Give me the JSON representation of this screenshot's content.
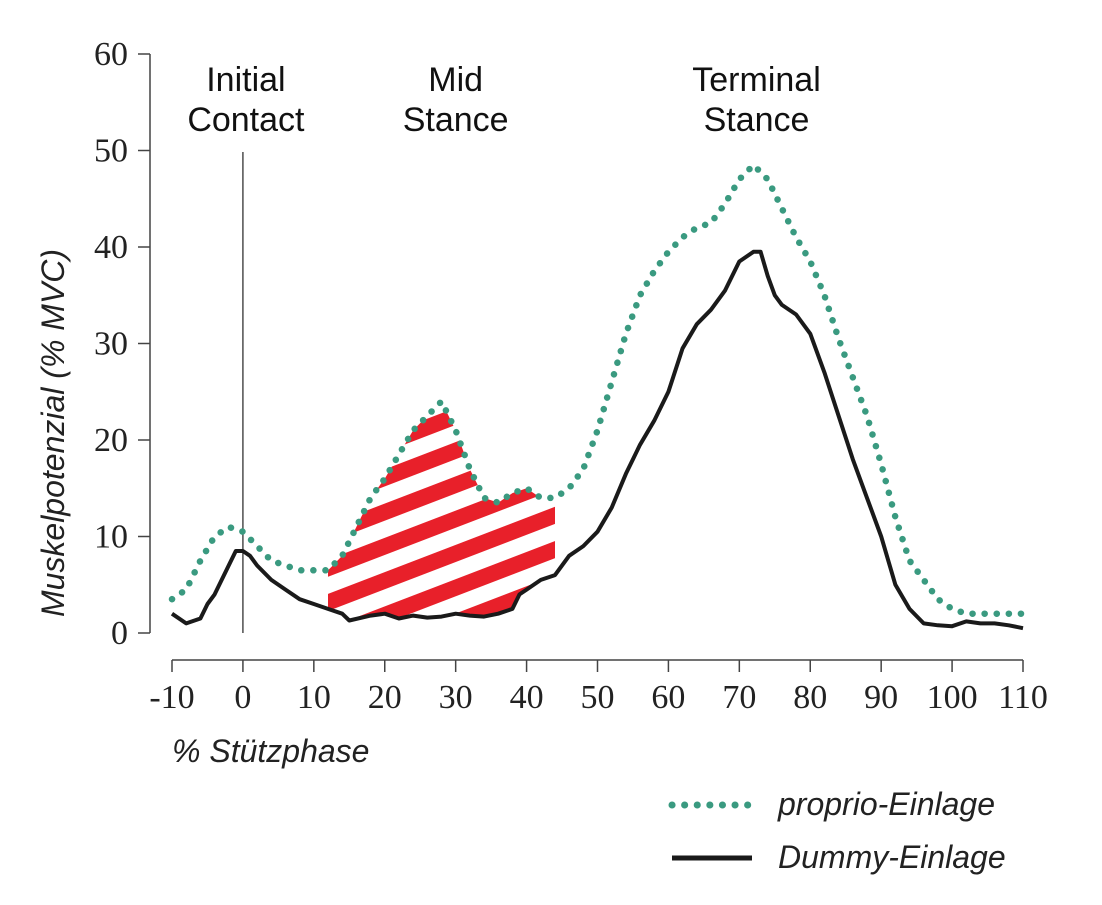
{
  "chart_data": {
    "type": "line",
    "xlabel": "% Stützphase",
    "ylabel": "Muskelpotenzial (% MVC)",
    "xlim": [
      -10,
      110
    ],
    "ylim": [
      0,
      60
    ],
    "xticks": [
      -10,
      0,
      10,
      20,
      30,
      40,
      50,
      60,
      70,
      80,
      90,
      100,
      110
    ],
    "yticks": [
      0,
      10,
      20,
      30,
      40,
      50,
      60
    ],
    "grid": false,
    "legend_position": "bottom-right",
    "phase_labels": [
      {
        "x": 0,
        "line1": "Initial",
        "line2": "Contact"
      },
      {
        "x": 30,
        "line1": "Mid",
        "line2": "Stance"
      },
      {
        "x": 72,
        "line1": "Terminal",
        "line2": "Stance"
      }
    ],
    "vertical_marker_x": 0,
    "highlight_region": {
      "x_start": 12,
      "x_end": 44,
      "color": "#e8202a",
      "pattern": "diagonal-stripes"
    },
    "series": [
      {
        "name": "proprio-Einlage",
        "color": "#3a9a80",
        "style": "dotted",
        "x": [
          -10,
          -8,
          -6,
          -4,
          -2,
          0,
          2,
          4,
          6,
          8,
          10,
          12,
          14,
          16,
          18,
          20,
          22,
          24,
          26,
          28,
          30,
          32,
          34,
          36,
          38,
          40,
          42,
          44,
          46,
          48,
          50,
          52,
          54,
          56,
          58,
          60,
          62,
          64,
          66,
          68,
          70,
          72,
          74,
          76,
          78,
          80,
          82,
          84,
          86,
          88,
          90,
          92,
          94,
          96,
          98,
          100,
          102,
          104,
          106,
          108,
          110
        ],
        "y": [
          3.5,
          4.5,
          7.5,
          10,
          11,
          10.5,
          9,
          7.5,
          7,
          6.5,
          6.5,
          6.5,
          8,
          11,
          14,
          16,
          18.5,
          21,
          22.5,
          24,
          21,
          17,
          14,
          13.5,
          14.5,
          15,
          14,
          14,
          15,
          17,
          21,
          26,
          31,
          35,
          37.5,
          39.5,
          41,
          42,
          42.5,
          44.5,
          47,
          48.5,
          47,
          44,
          41,
          38.5,
          35,
          30.5,
          26.5,
          22.5,
          17.5,
          12,
          7.5,
          5.5,
          3.5,
          2.5,
          2,
          2,
          2,
          2,
          2
        ]
      },
      {
        "name": "Dummy-Einlage",
        "color": "#1a1a1a",
        "style": "solid",
        "x": [
          -10,
          -8,
          -6,
          -5,
          -4,
          -2,
          -1,
          0,
          1,
          2,
          4,
          6,
          8,
          10,
          12,
          14,
          15,
          18,
          20,
          22,
          24,
          26,
          28,
          30,
          32,
          34,
          36,
          38,
          39,
          40,
          42,
          44,
          46,
          48,
          50,
          52,
          54,
          56,
          58,
          60,
          62,
          64,
          66,
          68,
          70,
          72,
          73,
          74,
          75,
          76,
          78,
          80,
          82,
          84,
          86,
          88,
          90,
          92,
          94,
          96,
          98,
          100,
          102,
          104,
          106,
          108,
          110
        ],
        "y": [
          2,
          1,
          1.5,
          3,
          4,
          7,
          8.5,
          8.5,
          8,
          7,
          5.5,
          4.5,
          3.5,
          3,
          2.5,
          2,
          1.3,
          1.8,
          2,
          1.5,
          1.8,
          1.6,
          1.7,
          2,
          1.8,
          1.7,
          2,
          2.5,
          4,
          4.5,
          5.5,
          6,
          8,
          9,
          10.5,
          13,
          16.5,
          19.5,
          22,
          25,
          29.5,
          32,
          33.5,
          35.5,
          38.5,
          39.5,
          39.5,
          37,
          35,
          34,
          33,
          31,
          27,
          22.5,
          18,
          14,
          10,
          5,
          2.5,
          1,
          0.8,
          0.7,
          1.2,
          1,
          1,
          0.8,
          0.5
        ]
      }
    ]
  },
  "legend": [
    {
      "label": "proprio-Einlage",
      "color": "#3a9a80",
      "style": "dotted"
    },
    {
      "label": "Dummy-Einlage",
      "color": "#1a1a1a",
      "style": "solid"
    }
  ]
}
